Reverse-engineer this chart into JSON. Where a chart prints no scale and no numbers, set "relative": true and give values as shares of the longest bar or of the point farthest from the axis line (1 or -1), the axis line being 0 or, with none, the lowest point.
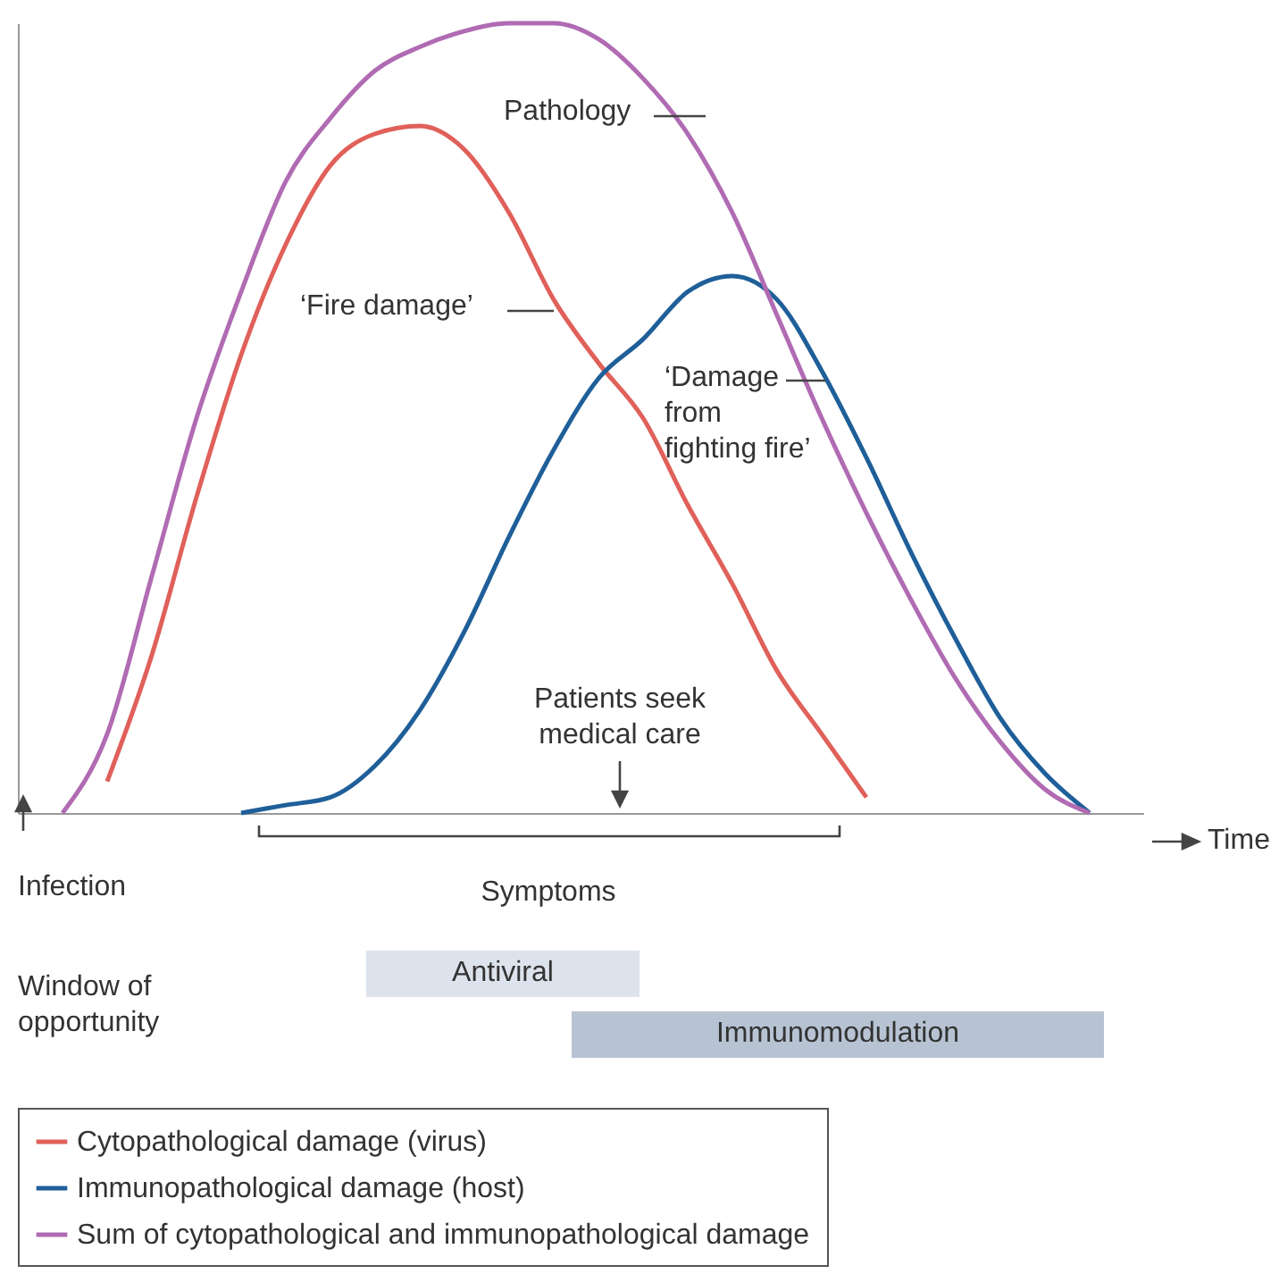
{
  "chart_data": {
    "type": "line",
    "relative": true,
    "xlabel": "Time",
    "legend": "bottom",
    "categories": [
      null,
      null,
      null,
      null,
      null,
      null,
      null,
      null,
      null,
      null,
      null,
      null,
      null,
      null,
      null,
      null,
      null,
      null,
      null,
      null,
      null,
      null,
      null,
      null,
      null,
      null
    ],
    "series": [
      {
        "name": "Cytopathological damage (virus)",
        "color": "#e0605a",
        "values": [
          null,
          null,
          0.04,
          0.2,
          0.4,
          0.58,
          0.72,
          0.82,
          0.86,
          0.87,
          0.84,
          0.76,
          0.65,
          0.57,
          0.5,
          0.39,
          0.29,
          0.18,
          0.1,
          0.02,
          null,
          null,
          null,
          null,
          null,
          null
        ]
      },
      {
        "name": "Immunopathological damage (host)",
        "color": "#1f5f99",
        "values": [
          null,
          null,
          null,
          null,
          null,
          0,
          0.01,
          0.02,
          0.06,
          0.13,
          0.23,
          0.35,
          0.46,
          0.55,
          0.6,
          0.66,
          0.68,
          0.65,
          0.56,
          0.45,
          0.33,
          0.22,
          0.12,
          0.05,
          0,
          null
        ]
      },
      {
        "name": "Sum of cytopathological and immunopathological damage",
        "color": "#b06bb3",
        "values": [
          null,
          0,
          0.1,
          0.3,
          0.5,
          0.66,
          0.8,
          0.88,
          0.94,
          0.97,
          0.99,
          1,
          1,
          0.98,
          0.93,
          0.86,
          0.76,
          0.63,
          0.5,
          0.38,
          0.27,
          0.17,
          0.09,
          0.03,
          0,
          null
        ]
      }
    ],
    "annotations": [
      "Pathology",
      "‘Fire damage’",
      "‘Damage from fighting fire’",
      "Patients seek medical care",
      "Infection",
      "Symptoms",
      "Window of opportunity",
      "Antiviral",
      "Immunomodulation"
    ]
  }
}
